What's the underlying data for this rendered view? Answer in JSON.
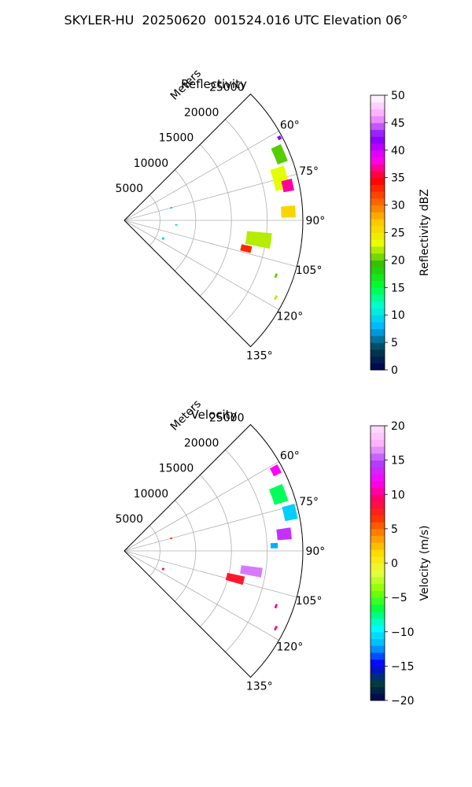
{
  "suptitle": "SKYLER-HU  20250620  001524.016 UTC Elevation 06°",
  "chart_data": [
    {
      "type": "heatmap",
      "projection": "polar-sector",
      "title": "Reflectivity",
      "radial_axis_label": "Meters",
      "radial_range": [
        0,
        25000
      ],
      "radial_ticks": [
        5000,
        10000,
        15000,
        20000,
        25000
      ],
      "radial_tick_labels": [
        "5000",
        "10000",
        "15000",
        "20000",
        "25000"
      ],
      "azimuth_range_deg": [
        45,
        135
      ],
      "azimuth_ticks_deg": [
        60,
        75,
        90,
        105,
        120,
        135
      ],
      "azimuth_tick_labels": [
        "60°",
        "75°",
        "90°",
        "105°",
        "120°",
        "135°"
      ],
      "grid": true,
      "colorbar": {
        "label": "Reflectivity dBZ",
        "range": [
          0,
          50
        ],
        "ticks": [
          0,
          5,
          10,
          15,
          20,
          25,
          30,
          35,
          40,
          45,
          50
        ],
        "tick_labels": [
          "0",
          "5",
          "10",
          "15",
          "20",
          "25",
          "30",
          "35",
          "40",
          "45",
          "50"
        ],
        "colormap": [
          "#000050",
          "#004050",
          "#00b0ff",
          "#00ffd8",
          "#00ff30",
          "#30c000",
          "#e8ff00",
          "#ffc800",
          "#ff6000",
          "#ff0000",
          "#ff00ff",
          "#8000ff",
          "#ffa0ff",
          "#ffffff"
        ]
      },
      "echoes": [
        {
          "az": 62,
          "r": 24600,
          "az_w": 1.2,
          "r_w": 500,
          "dbz": 42
        },
        {
          "az": 67,
          "r": 23600,
          "az_w": 6,
          "r_w": 1500,
          "dbz": 20
        },
        {
          "az": 75,
          "r": 22600,
          "az_w": 8,
          "r_w": 2000,
          "dbz": 23
        },
        {
          "az": 78,
          "r": 23400,
          "az_w": 4,
          "r_w": 1500,
          "dbz": 37
        },
        {
          "az": 87,
          "r": 23000,
          "az_w": 4,
          "r_w": 2000,
          "dbz": 26
        },
        {
          "az": 98,
          "r": 19000,
          "az_w": 6,
          "r_w": 3500,
          "dbz": 22
        },
        {
          "az": 103,
          "r": 17500,
          "az_w": 3,
          "r_w": 1500,
          "dbz": 33
        },
        {
          "az": 110,
          "r": 22600,
          "az_w": 1.5,
          "r_w": 300,
          "dbz": 20
        },
        {
          "az": 117,
          "r": 23800,
          "az_w": 1.5,
          "r_w": 300,
          "dbz": 22
        },
        {
          "az": 75,
          "r": 6800,
          "az_w": 2,
          "r_w": 300,
          "dbz": 10
        },
        {
          "az": 95,
          "r": 7300,
          "az_w": 1.5,
          "r_w": 300,
          "dbz": 9
        },
        {
          "az": 115,
          "r": 6000,
          "az_w": 3,
          "r_w": 300,
          "dbz": 9
        }
      ]
    },
    {
      "type": "heatmap",
      "projection": "polar-sector",
      "title": "Velocity",
      "radial_axis_label": "Meters",
      "radial_range": [
        0,
        25000
      ],
      "radial_ticks": [
        5000,
        10000,
        15000,
        20000,
        25000
      ],
      "radial_tick_labels": [
        "5000",
        "10000",
        "15000",
        "20000",
        "25000"
      ],
      "azimuth_range_deg": [
        45,
        135
      ],
      "azimuth_ticks_deg": [
        60,
        75,
        90,
        105,
        120,
        135
      ],
      "azimuth_tick_labels": [
        "60°",
        "75°",
        "90°",
        "105°",
        "120°",
        "135°"
      ],
      "grid": true,
      "colorbar": {
        "label": "Velocity (m/s)",
        "range": [
          -20,
          20
        ],
        "ticks": [
          -20,
          -15,
          -10,
          -5,
          0,
          5,
          10,
          15,
          20
        ],
        "tick_labels": [
          "−20",
          "−15",
          "−10",
          "−5",
          "0",
          "5",
          "10",
          "15",
          "20"
        ],
        "colormap": [
          "#000050",
          "#004040",
          "#0000ff",
          "#00b0ff",
          "#00ffff",
          "#00ff40",
          "#80ff00",
          "#e8ff40",
          "#ffe000",
          "#ff9000",
          "#ff3000",
          "#ff0060",
          "#ff00ff",
          "#b040ff",
          "#ffb0ff",
          "#ffe0ff"
        ]
      },
      "echoes": [
        {
          "az": 62,
          "r": 24000,
          "az_w": 3,
          "r_w": 1200,
          "vel": 12
        },
        {
          "az": 70,
          "r": 23000,
          "az_w": 6,
          "r_w": 2000,
          "vel": -7
        },
        {
          "az": 77,
          "r": 23800,
          "az_w": 5,
          "r_w": 1800,
          "vel": -11
        },
        {
          "az": 84,
          "r": 22500,
          "az_w": 4,
          "r_w": 2000,
          "vel": 14
        },
        {
          "az": 88,
          "r": 21000,
          "az_w": 2,
          "r_w": 1000,
          "vel": -12
        },
        {
          "az": 99,
          "r": 18000,
          "az_w": 4,
          "r_w": 3000,
          "vel": 16
        },
        {
          "az": 104,
          "r": 16000,
          "az_w": 4,
          "r_w": 2500,
          "vel": 8
        },
        {
          "az": 110,
          "r": 22600,
          "az_w": 1.5,
          "r_w": 300,
          "vel": 10
        },
        {
          "az": 117,
          "r": 23800,
          "az_w": 1.5,
          "r_w": 300,
          "vel": 10
        },
        {
          "az": 75,
          "r": 6800,
          "az_w": 2,
          "r_w": 300,
          "vel": 6
        },
        {
          "az": 115,
          "r": 6000,
          "az_w": 3,
          "r_w": 300,
          "vel": 9
        }
      ]
    }
  ]
}
